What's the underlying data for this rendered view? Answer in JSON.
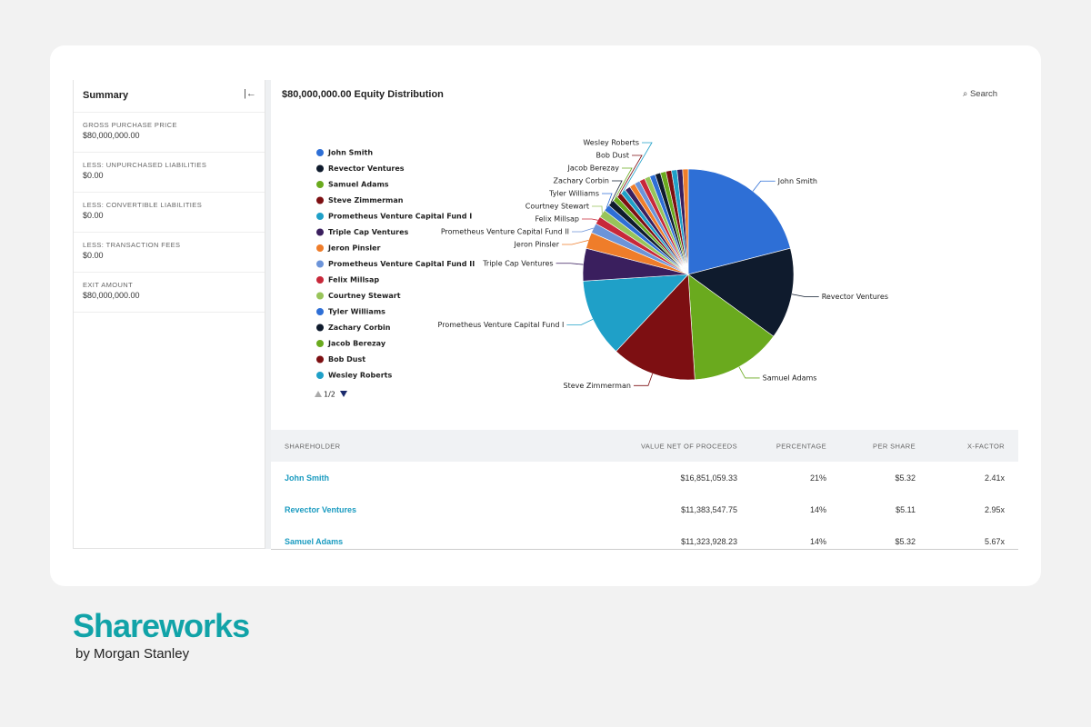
{
  "summary": {
    "title": "Summary",
    "items": [
      {
        "label": "GROSS PURCHASE PRICE",
        "value": "$80,000,000.00"
      },
      {
        "label": "LESS: UNPURCHASED LIABILITIES",
        "value": "$0.00"
      },
      {
        "label": "LESS: CONVERTIBLE LIABILITIES",
        "value": "$0.00"
      },
      {
        "label": "LESS: TRANSACTION FEES",
        "value": "$0.00"
      },
      {
        "label": "EXIT AMOUNT",
        "value": "$80,000,000.00"
      }
    ]
  },
  "panel": {
    "title": "$80,000,000.00 Equity Distribution",
    "search": "Search"
  },
  "chart_data": {
    "type": "pie",
    "categories": [
      "John Smith",
      "Revector Ventures",
      "Samuel Adams",
      "Steve Zimmerman",
      "Prometheus Venture Capital Fund I",
      "Triple Cap Ventures",
      "Jeron Pinsler",
      "Prometheus Venture Capital Fund II",
      "Felix Millsap",
      "Courtney Stewart",
      "Tyler Williams",
      "Zachary Corbin",
      "Jacob Berezay",
      "Bob Dust",
      "Wesley Roberts",
      null,
      null,
      null,
      null,
      null,
      null,
      null,
      null,
      null,
      null,
      null,
      null
    ],
    "values": [
      21,
      14,
      14,
      13,
      12,
      5,
      2.5,
      1.5,
      1.2,
      1.2,
      1,
      1,
      0.8,
      0.8,
      0.8,
      0.85,
      0.85,
      0.85,
      0.85,
      0.85,
      0.85,
      0.85,
      0.85,
      0.85,
      0.85,
      0.85,
      0.85
    ],
    "colors": [
      "#2e6fd6",
      "#0f1b2d",
      "#6aaa1e",
      "#7d0f12",
      "#1fa0c8",
      "#3a1f5e",
      "#ef7d2a",
      "#6c94d9",
      "#c8283a",
      "#98c45a",
      "#2e6fd6",
      "#0f1b2d",
      "#6aaa1e",
      "#7d0f12",
      "#1fa0c8",
      "#3a1f5e",
      "#ef7d2a",
      "#6c94d9",
      "#c8283a",
      "#98c45a",
      "#2e6fd6",
      "#0f1b2d",
      "#6aaa1e",
      "#7d0f12",
      "#1fa0c8",
      "#3a1f5e",
      "#ef7d2a"
    ],
    "legend_page": "1/2"
  },
  "table": {
    "headers": [
      "SHAREHOLDER",
      "VALUE NET OF PROCEEDS",
      "PERCENTAGE",
      "PER SHARE",
      "X-FACTOR"
    ],
    "rows": [
      [
        "John Smith",
        "$16,851,059.33",
        "21%",
        "$5.32",
        "2.41x"
      ],
      [
        "Revector Ventures",
        "$11,383,547.75",
        "14%",
        "$5.11",
        "2.95x"
      ],
      [
        "Samuel Adams",
        "$11,323,928.23",
        "14%",
        "$5.32",
        "5.67x"
      ]
    ]
  },
  "brand": {
    "name": "Shareworks",
    "tagline": "by Morgan Stanley"
  }
}
